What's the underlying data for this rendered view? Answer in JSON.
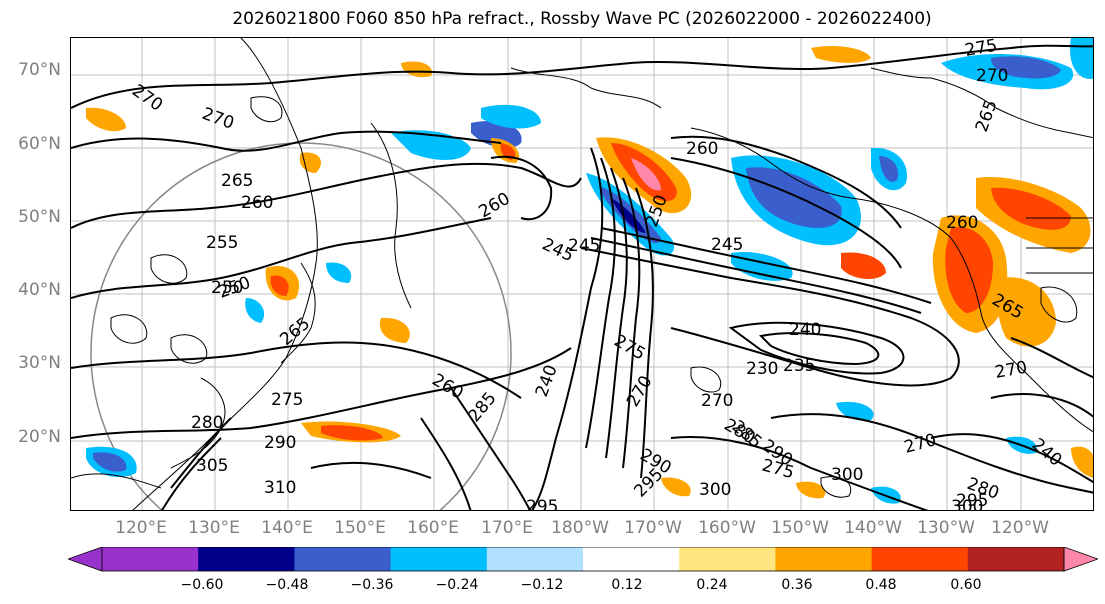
{
  "title": "2026021800 F060 850 hPa refract., Rossby Wave PC (2026022000 - 2026022400)",
  "map": {
    "projection": "PlateCarree",
    "lat_labels": [
      "70°N",
      "60°N",
      "50°N",
      "40°N",
      "30°N",
      "20°N"
    ],
    "lon_labels": [
      "120°E",
      "130°E",
      "140°E",
      "150°E",
      "160°E",
      "170°E",
      "180°W",
      "170°W",
      "160°W",
      "150°W",
      "140°W",
      "130°W",
      "120°W"
    ],
    "gridlines": true,
    "contour_labels": [
      "270",
      "270",
      "265",
      "260",
      "255",
      "250",
      "245",
      "250",
      "260",
      "260",
      "245",
      "240",
      "235",
      "230",
      "275",
      "280",
      "290",
      "305",
      "310",
      "285",
      "270",
      "260",
      "285",
      "290",
      "295",
      "300",
      "295",
      "275",
      "280",
      "290",
      "300",
      "270",
      "270",
      "265",
      "260",
      "275",
      "270",
      "275",
      "265",
      "280",
      "240",
      "295",
      "300",
      "265",
      "250",
      "245",
      "240",
      "270"
    ],
    "coast_color": "#000000",
    "contour_color": "#000000"
  },
  "colorbar": {
    "ticks": [
      "−0.60",
      "−0.48",
      "−0.36",
      "−0.24",
      "−0.12",
      "0.12",
      "0.24",
      "0.36",
      "0.48",
      "0.60"
    ],
    "colors": [
      "#9932cc",
      "#00008b",
      "#3a5fcd",
      "#00bfff",
      "#b0e2ff",
      "#ffffff",
      "#ffe680",
      "#ffa500",
      "#ff4500",
      "#b22222",
      "#ff88aa",
      "#ff88aa"
    ],
    "extend": "both"
  }
}
